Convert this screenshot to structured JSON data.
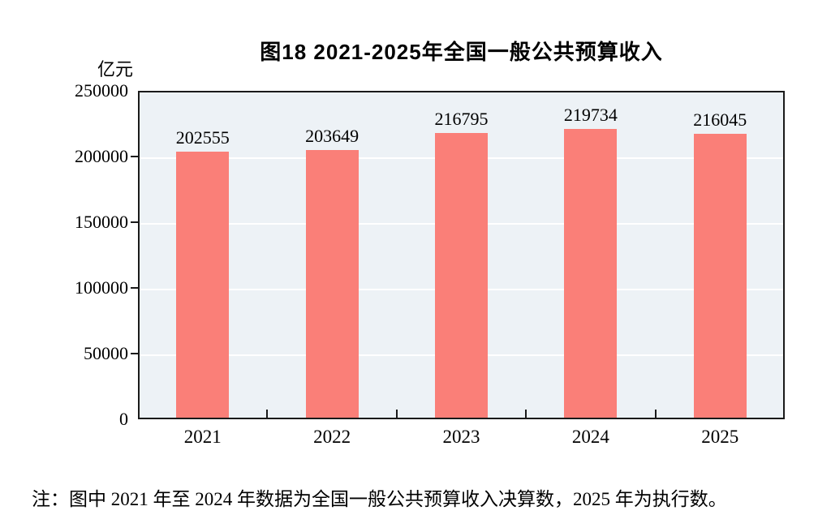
{
  "chart_data": {
    "type": "bar",
    "title": "图18  2021-2025年全国一般公共预算收入",
    "unit_label": "亿元",
    "categories": [
      "2021",
      "2022",
      "2023",
      "2024",
      "2025"
    ],
    "values": [
      202555,
      203649,
      216795,
      219734,
      216045
    ],
    "ylim": [
      0,
      250000
    ],
    "ytick_interval": 50000,
    "ytick_labels": [
      "250000",
      "200000",
      "150000",
      "100000",
      "50000",
      "0"
    ],
    "grid": true,
    "legend": "none",
    "colors": {
      "bar_fill": "#FA7F78",
      "plot_background": "#EDF2F6",
      "gridline": "#FFFFFF",
      "axis": "#1a1a1a",
      "text": "#000000",
      "page_background": "#FFFFFF"
    }
  },
  "note": "注：图中 2021 年至 2024 年数据为全国一般公共预算收入决算数，2025 年为执行数。"
}
